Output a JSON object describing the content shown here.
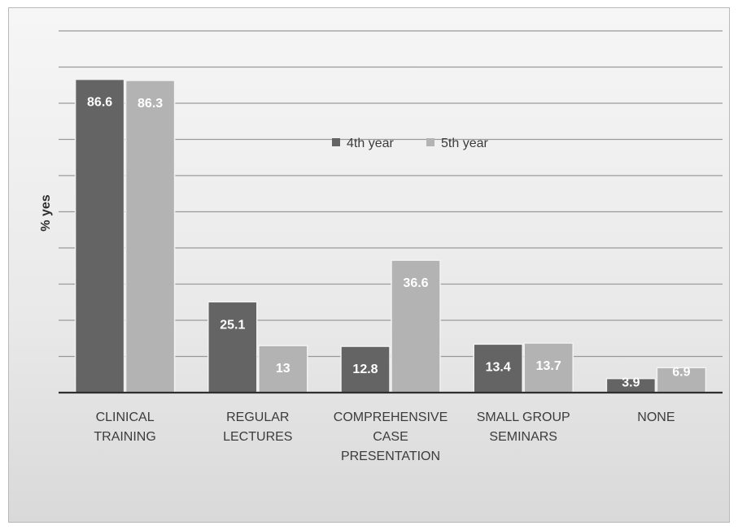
{
  "chart_data": {
    "type": "bar",
    "ylabel": "% yes",
    "xlabel": "",
    "ylim": [
      0,
      100
    ],
    "grid": true,
    "legend_position": "top-center",
    "categories": [
      [
        "CLINICAL",
        "TRAINING"
      ],
      [
        "REGULAR",
        "LECTURES"
      ],
      [
        "COMPREHENSIVE",
        "CASE",
        "PRESENTATION"
      ],
      [
        "SMALL GROUP",
        "SEMINARS"
      ],
      [
        "NONE"
      ]
    ],
    "series": [
      {
        "name": "4th year",
        "color": "#646464",
        "values": [
          86.6,
          25.1,
          12.8,
          13.4,
          3.9
        ]
      },
      {
        "name": "5th year",
        "color": "#b3b3b3",
        "values": [
          86.3,
          13,
          36.6,
          13.7,
          6.9
        ]
      }
    ]
  }
}
